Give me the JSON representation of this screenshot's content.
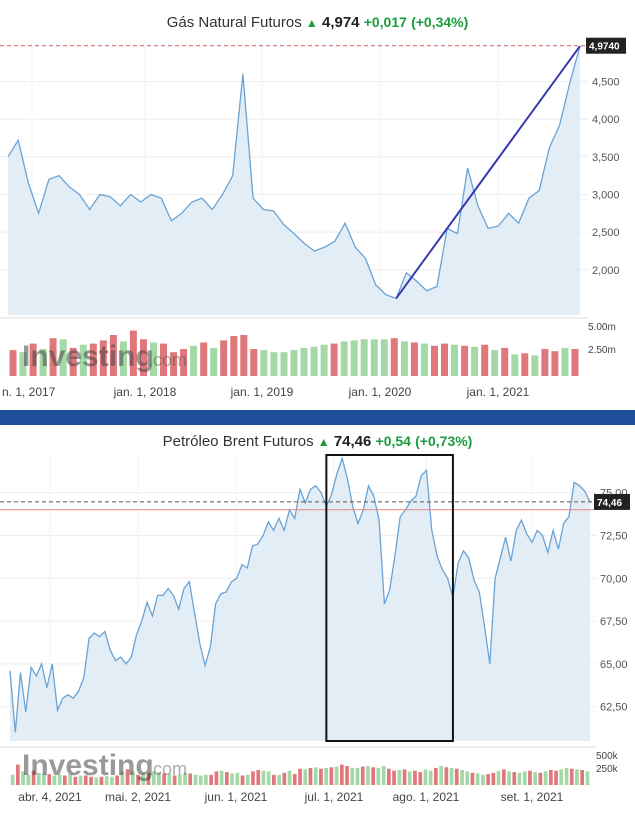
{
  "charts": [
    {
      "name": "Gás Natural Futuros",
      "price": "4,974",
      "change": "+0,017",
      "change_pct": "(+0,34%)",
      "last_label": "4,9740",
      "volume_labels": [
        "5.00m",
        "2.50m"
      ],
      "watermark": {
        "main": "Investing",
        "suffix": ".com"
      }
    },
    {
      "name": "Petróleo Brent Futuros",
      "price": "74,46",
      "change": "+0,54",
      "change_pct": "(+0,73%)",
      "last_label": "74,46",
      "volume_labels": [
        "500k",
        "250k"
      ],
      "watermark": {
        "main": "Investing",
        "suffix": ".com"
      }
    }
  ],
  "colors": {
    "line": "#6aa3d5",
    "area": "#e3edf6",
    "up": "#a4d8a6",
    "down": "#e0777a",
    "trend": "#3a3ab0",
    "accent_up": "#1a9c3c"
  },
  "chart_data": [
    {
      "type": "area",
      "title": "Gás Natural Futuros",
      "x_ticks": [
        "n. 1, 2017",
        "jan. 1, 2018",
        "jan. 1, 2019",
        "jan. 1, 2020",
        "jan. 1, 2021"
      ],
      "y_ticks": [
        "2,000",
        "2,500",
        "3,000",
        "3,500",
        "4,000",
        "4,500"
      ],
      "ylim": [
        1.4,
        5.05
      ],
      "dashed_reference": 4.974,
      "series": [
        {
          "values": [
            3.5,
            3.72,
            3.15,
            2.75,
            3.2,
            3.25,
            3.1,
            3.0,
            2.8,
            3.0,
            2.97,
            2.85,
            3.0,
            2.9,
            3.0,
            2.95,
            2.65,
            2.75,
            2.9,
            2.95,
            2.8,
            3.0,
            3.25,
            4.6,
            2.95,
            2.8,
            2.78,
            2.6,
            2.48,
            2.35,
            2.25,
            2.3,
            2.38,
            2.62,
            2.3,
            2.15,
            1.8,
            1.67,
            1.62,
            1.96,
            1.85,
            1.72,
            1.78,
            2.55,
            2.48,
            3.35,
            2.85,
            2.55,
            2.58,
            2.75,
            2.62,
            2.95,
            3.05,
            3.62,
            3.92,
            4.48,
            4.97
          ]
        }
      ],
      "trendline": {
        "from_index": 38,
        "to_index": 56,
        "from_value": 1.62,
        "to_value": 4.97
      },
      "volume": {
        "max_label_value": 5.0,
        "values": [
          2.4,
          2.2,
          3.0,
          2.5,
          3.5,
          3.4,
          2.6,
          2.9,
          3.0,
          3.3,
          3.8,
          3.2,
          4.2,
          3.4,
          3.1,
          3.0,
          2.2,
          2.5,
          2.8,
          3.1,
          2.6,
          3.3,
          3.7,
          3.8,
          2.5,
          2.4,
          2.2,
          2.2,
          2.4,
          2.6,
          2.7,
          2.9,
          3.0,
          3.2,
          3.3,
          3.4,
          3.4,
          3.4,
          3.5,
          3.2,
          3.1,
          3.0,
          2.8,
          3.0,
          2.9,
          2.8,
          2.7,
          2.9,
          2.4,
          2.6,
          2.0,
          2.1,
          1.9,
          2.5,
          2.3,
          2.6,
          2.5
        ],
        "direction": [
          0,
          1,
          0,
          1,
          0,
          1,
          0,
          1,
          0,
          0,
          0,
          1,
          0,
          0,
          1,
          0,
          0,
          0,
          1,
          0,
          1,
          0,
          0,
          0,
          0,
          1,
          1,
          1,
          1,
          1,
          1,
          1,
          0,
          1,
          1,
          1,
          1,
          1,
          0,
          1,
          0,
          1,
          0,
          0,
          1,
          0,
          1,
          0,
          1,
          0,
          1,
          0,
          1,
          0,
          0,
          1,
          0
        ]
      }
    },
    {
      "type": "area",
      "title": "Petróleo Brent Futuros",
      "x_ticks": [
        "abr. 4, 2021",
        "mai. 2, 2021",
        "jun. 1, 2021",
        "jul. 1, 2021",
        "ago. 1, 2021",
        "set. 1, 2021"
      ],
      "y_ticks": [
        "62,50",
        "65,00",
        "67,50",
        "70,00",
        "72,50",
        "75,00"
      ],
      "ylim": [
        60.5,
        77.2
      ],
      "dashed_reference": 74.46,
      "red_reference": 74.0,
      "series": [
        {
          "values": [
            64.6,
            61.0,
            64.5,
            62.2,
            64.8,
            64.3,
            65.0,
            63.6,
            65.0,
            62.3,
            63.0,
            63.2,
            63.0,
            63.4,
            64.2,
            66.5,
            66.8,
            66.6,
            66.9,
            65.8,
            65.2,
            65.4,
            65.0,
            65.4,
            66.7,
            67.5,
            68.6,
            67.8,
            69.0,
            69.0,
            69.4,
            69.0,
            68.2,
            69.4,
            69.8,
            68.0,
            66.2,
            64.9,
            66.0,
            68.5,
            69.1,
            69.2,
            69.8,
            70.0,
            70.8,
            70.6,
            71.9,
            72.0,
            72.5,
            73.3,
            72.8,
            73.5,
            72.8,
            74.0,
            73.5,
            75.2,
            74.4,
            75.2,
            75.4,
            75.0,
            74.2,
            74.9,
            76.1,
            77.0,
            75.8,
            74.2,
            73.2,
            74.0,
            75.4,
            74.8,
            73.4,
            68.5,
            69.3,
            71.3,
            73.6,
            74.0,
            74.5,
            74.8,
            76.0,
            76.3,
            72.8,
            71.3,
            70.5,
            70.0,
            68.9,
            70.9,
            71.6,
            71.2,
            69.9,
            69.2,
            67.2,
            65.0,
            70.0,
            71.2,
            72.4,
            71.0,
            72.8,
            73.4,
            72.6,
            72.1,
            72.8,
            72.5,
            71.5,
            72.8,
            71.7,
            73.2,
            73.6,
            75.6,
            75.4,
            75.1,
            74.46
          ]
        }
      ],
      "highlight_box": {
        "from_index": 60,
        "to_index": 84,
        "y_range": [
          60.5,
          77.2
        ]
      },
      "volume": {
        "max_label_value": 500,
        "values": [
          150,
          300,
          200,
          150,
          210,
          180,
          160,
          160,
          140,
          150,
          140,
          160,
          120,
          140,
          140,
          120,
          110,
          120,
          130,
          120,
          140,
          200,
          230,
          200,
          150,
          170,
          180,
          200,
          190,
          170,
          160,
          140,
          150,
          180,
          170,
          150,
          140,
          150,
          150,
          200,
          210,
          190,
          170,
          180,
          140,
          150,
          200,
          220,
          210,
          200,
          150,
          150,
          180,
          210,
          160,
          240,
          230,
          250,
          260,
          240,
          250,
          260,
          270,
          300,
          280,
          250,
          250,
          270,
          280,
          260,
          250,
          280,
          240,
          210,
          220,
          230,
          200,
          210,
          190,
          230,
          210,
          250,
          280,
          260,
          250,
          240,
          220,
          200,
          180,
          170,
          150,
          160,
          180,
          210,
          230,
          200,
          190,
          180,
          200,
          210,
          190,
          180,
          200,
          220,
          210,
          230,
          250,
          240,
          230,
          220,
          200
        ],
        "direction": [
          1,
          0,
          1,
          1,
          0,
          1,
          1,
          0,
          1,
          1,
          0,
          1,
          0,
          1,
          0,
          0,
          1,
          0,
          1,
          1,
          0,
          1,
          0,
          1,
          0,
          1,
          0,
          1,
          1,
          0,
          1,
          0,
          1,
          1,
          0,
          1,
          1,
          1,
          0,
          0,
          1,
          0,
          1,
          1,
          0,
          1,
          0,
          0,
          1,
          1,
          0,
          1,
          0,
          1,
          0,
          0,
          1,
          0,
          1,
          0,
          1,
          0,
          1,
          0,
          0,
          1,
          1,
          0,
          1,
          0,
          1,
          1,
          0,
          0,
          1,
          0,
          1,
          0,
          0,
          1,
          1,
          0,
          1,
          0,
          1,
          0,
          1,
          1,
          0,
          1,
          1,
          0,
          0,
          1,
          0,
          1,
          0,
          1,
          1,
          0,
          1,
          0,
          1,
          0,
          0,
          1,
          1,
          0,
          1,
          0,
          1
        ]
      }
    }
  ]
}
